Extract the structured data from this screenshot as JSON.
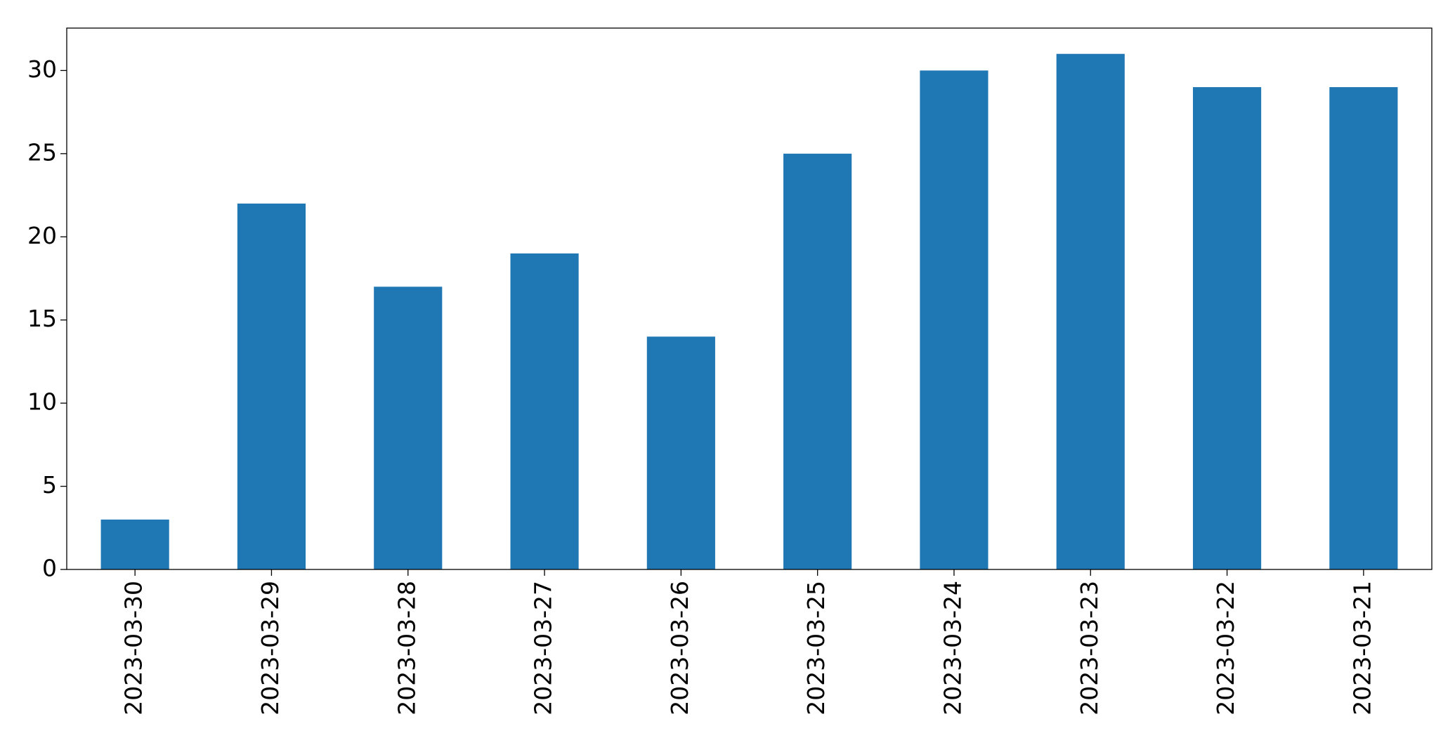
{
  "chart_data": {
    "type": "bar",
    "categories": [
      "2023-03-30",
      "2023-03-29",
      "2023-03-28",
      "2023-03-27",
      "2023-03-26",
      "2023-03-25",
      "2023-03-24",
      "2023-03-23",
      "2023-03-22",
      "2023-03-21"
    ],
    "values": [
      3,
      22,
      17,
      19,
      14,
      25,
      30,
      31,
      29,
      29
    ],
    "color": "#1f77b4",
    "ylim": [
      0,
      32.55
    ],
    "yticks": [
      0,
      5,
      10,
      15,
      20,
      25,
      30
    ],
    "grid": false
  }
}
